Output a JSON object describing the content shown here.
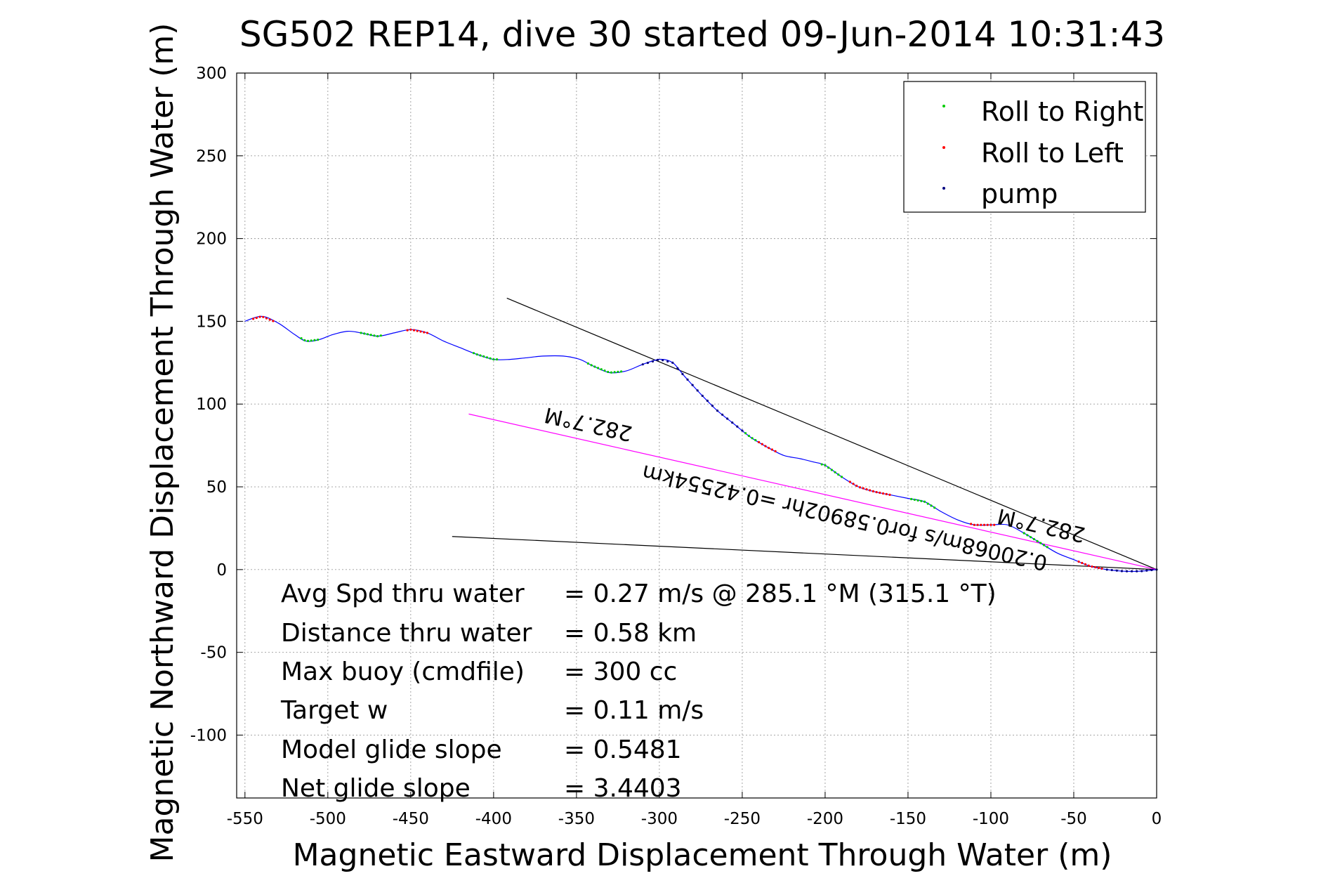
{
  "chart_data": {
    "type": "scatter",
    "title": "SG502 REP14, dive 30 started 09-Jun-2014 10:31:43",
    "xlabel": "Magnetic Eastward Displacement Through Water (m)",
    "ylabel": "Magnetic Northward Displacement Through Water (m)",
    "xlim": [
      -555,
      0
    ],
    "ylim": [
      -138,
      300
    ],
    "xticks": [
      -550,
      -500,
      -450,
      -400,
      -350,
      -300,
      -250,
      -200,
      -150,
      -100,
      -50,
      0
    ],
    "yticks": [
      300,
      250,
      200,
      150,
      100,
      50,
      0,
      -50,
      -100
    ],
    "grid": true,
    "legend_position": "top-right",
    "colors": {
      "track": "#0000ff",
      "roll_right": "#00cc00",
      "roll_left": "#ff0000",
      "pump": "#000080",
      "heading_line": "#ff00ff",
      "reference_lines": "#000000"
    },
    "legend": [
      {
        "label": "Roll to Right",
        "color": "#00cc00"
      },
      {
        "label": "Roll to Left",
        "color": "#ff0000"
      },
      {
        "label": "pump",
        "color": "#000080"
      }
    ],
    "track": [
      [
        -550,
        150
      ],
      [
        -540,
        153
      ],
      [
        -530,
        149
      ],
      [
        -520,
        142
      ],
      [
        -513,
        138
      ],
      [
        -505,
        139
      ],
      [
        -497,
        142
      ],
      [
        -488,
        144
      ],
      [
        -480,
        143
      ],
      [
        -470,
        141
      ],
      [
        -460,
        143
      ],
      [
        -450,
        145
      ],
      [
        -440,
        143
      ],
      [
        -430,
        138
      ],
      [
        -420,
        134
      ],
      [
        -410,
        130
      ],
      [
        -400,
        127
      ],
      [
        -390,
        127
      ],
      [
        -380,
        128
      ],
      [
        -370,
        129
      ],
      [
        -358,
        129
      ],
      [
        -348,
        127
      ],
      [
        -340,
        123
      ],
      [
        -330,
        119
      ],
      [
        -320,
        120
      ],
      [
        -310,
        124
      ],
      [
        -300,
        127
      ],
      [
        -292,
        125
      ],
      [
        -285,
        117
      ],
      [
        -275,
        106
      ],
      [
        -265,
        96
      ],
      [
        -255,
        88
      ],
      [
        -245,
        80
      ],
      [
        -235,
        74
      ],
      [
        -225,
        69
      ],
      [
        -215,
        67
      ],
      [
        -207,
        65
      ],
      [
        -200,
        63
      ],
      [
        -190,
        56
      ],
      [
        -180,
        50
      ],
      [
        -170,
        47
      ],
      [
        -160,
        45
      ],
      [
        -150,
        43
      ],
      [
        -140,
        41
      ],
      [
        -130,
        35
      ],
      [
        -120,
        30
      ],
      [
        -110,
        27
      ],
      [
        -100,
        27
      ],
      [
        -90,
        27
      ],
      [
        -80,
        22
      ],
      [
        -70,
        16
      ],
      [
        -60,
        10
      ],
      [
        -50,
        6
      ],
      [
        -40,
        2
      ],
      [
        -30,
        0
      ],
      [
        -20,
        -1
      ],
      [
        -10,
        -1
      ],
      [
        0,
        0
      ]
    ],
    "roll_right_segments": [
      [
        -516,
        -505
      ],
      [
        -480,
        -468
      ],
      [
        -412,
        -398
      ],
      [
        -343,
        -322
      ],
      [
        -248,
        -240
      ],
      [
        -202,
        -190
      ],
      [
        -148,
        -133
      ],
      [
        -80,
        -65
      ]
    ],
    "roll_left_segments": [
      [
        -545,
        -532
      ],
      [
        -452,
        -440
      ],
      [
        -240,
        -230
      ],
      [
        -185,
        -160
      ],
      [
        -112,
        -97
      ],
      [
        -47,
        -32
      ]
    ],
    "pump_segments": [
      [
        -310,
        -250
      ],
      [
        -30,
        0
      ]
    ],
    "reference_lines": [
      {
        "from": [
          -392,
          164
        ],
        "to": [
          0,
          0
        ]
      },
      {
        "from": [
          -425,
          20
        ],
        "to": [
          0,
          0
        ]
      }
    ],
    "heading_line": {
      "from": [
        -415,
        94
      ],
      "to": [
        0,
        0
      ]
    },
    "rotated_labels": {
      "heading_short": "282.7°M",
      "distance": "0.20068m/s for0.58902hr =0.42554km",
      "heading_long": "282.7°M"
    },
    "annotations": [
      {
        "label": "Avg Spd thru water",
        "value": "=  0.27 m/s @ 285.1 °M (315.1 °T)"
      },
      {
        "label": "Distance thru water",
        "value": "=  0.58 km"
      },
      {
        "label": "Max buoy (cmdfile)",
        "value": "= 300 cc"
      },
      {
        "label": "Target w",
        "value": "= 0.11 m/s"
      },
      {
        "label": "Model glide slope",
        "value": "= 0.5481"
      },
      {
        "label": "Net glide slope",
        "value": "= 3.4403"
      }
    ]
  }
}
